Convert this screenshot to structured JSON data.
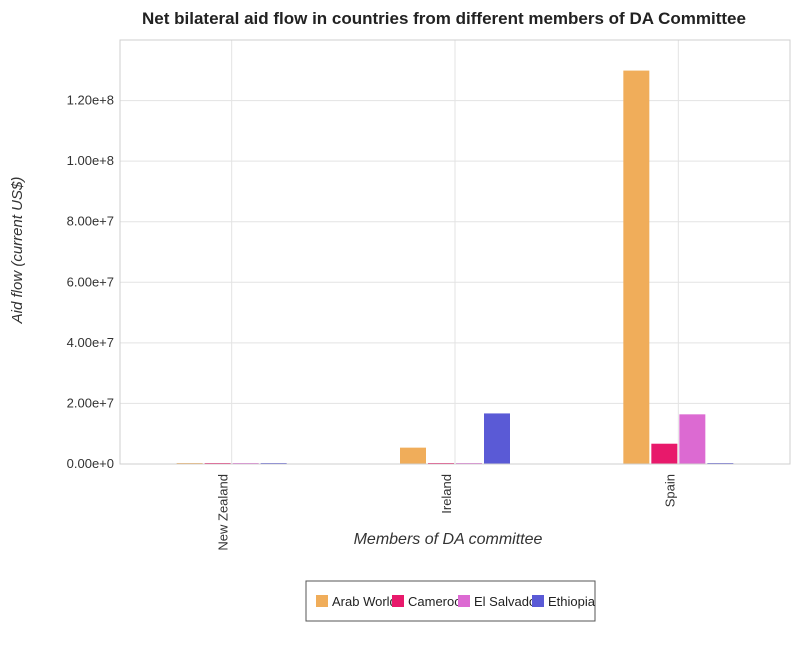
{
  "chart_data": {
    "type": "bar",
    "title": "Net bilateral aid flow in countries from different members of DA Committee",
    "xlabel": "Members of DA committee",
    "ylabel": "Aid flow (current US$)",
    "categories": [
      "New Zealand",
      "Ireland",
      "Spain"
    ],
    "ylim": [
      0,
      140000000
    ],
    "yticks": [
      0,
      20000000,
      40000000,
      60000000,
      80000000,
      100000000,
      120000000
    ],
    "ytick_labels": [
      "0.00e+0",
      "2.00e+7",
      "4.00e+7",
      "6.00e+7",
      "8.00e+7",
      "1.00e+8",
      "1.20e+8"
    ],
    "grid": true,
    "legend_position": "bottom-center",
    "series": [
      {
        "name": "Arab World",
        "color": "#f0ad5a",
        "values": [
          300000,
          5400000,
          129900000
        ]
      },
      {
        "name": "Cameroon",
        "color": "#e8196b",
        "values": [
          20000,
          100000,
          6700000
        ]
      },
      {
        "name": "El Salvador",
        "color": "#dc6ad2",
        "values": [
          60000,
          280000,
          16400000
        ]
      },
      {
        "name": "Ethiopia",
        "color": "#5a5ad6",
        "values": [
          20000,
          16700000,
          320000
        ]
      }
    ]
  }
}
